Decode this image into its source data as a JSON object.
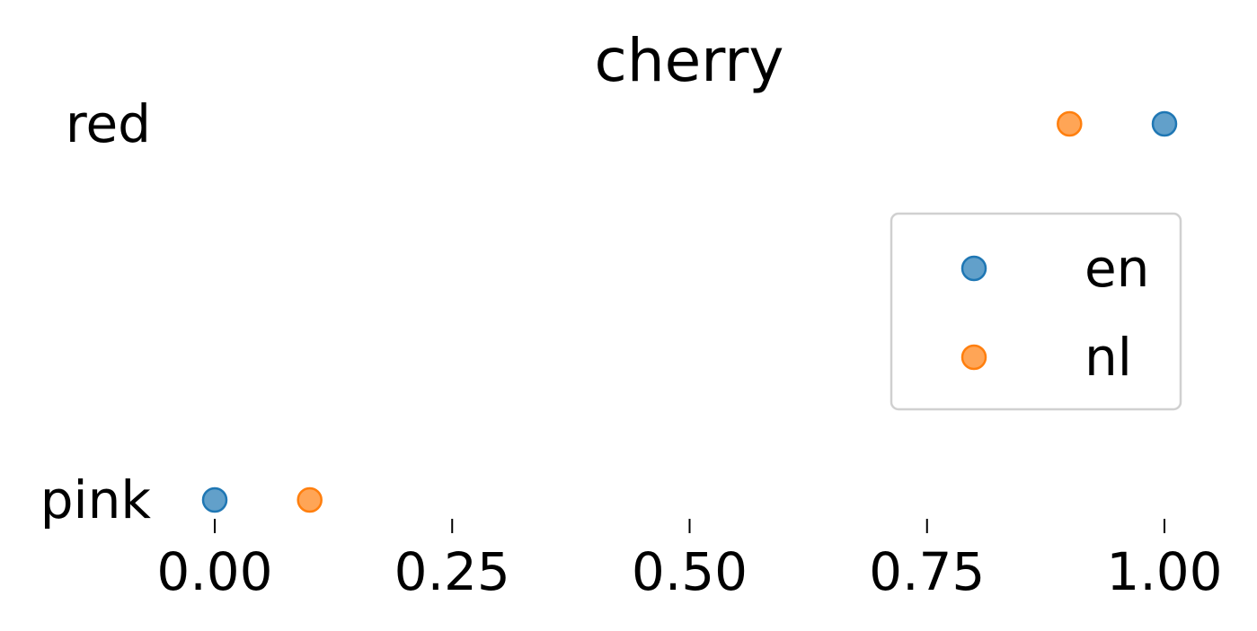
{
  "chart_data": {
    "type": "scatter",
    "title": "cherry",
    "xlabel": "",
    "ylabel": "",
    "categories": [
      "pink",
      "red"
    ],
    "xlim": [
      0,
      1
    ],
    "xticks": [
      "0.00",
      "0.25",
      "0.50",
      "0.75",
      "1.00"
    ],
    "xtick_values": [
      0,
      0.25,
      0.5,
      0.75,
      1.0
    ],
    "grid": false,
    "legend_position": "right",
    "series": [
      {
        "name": "en",
        "color": "#1f77b4",
        "points": [
          {
            "category": "red",
            "x": 1.0
          },
          {
            "category": "pink",
            "x": 0.0
          }
        ]
      },
      {
        "name": "nl",
        "color": "#ff7f0e",
        "points": [
          {
            "category": "red",
            "x": 0.9
          },
          {
            "category": "pink",
            "x": 0.1
          }
        ]
      }
    ]
  }
}
